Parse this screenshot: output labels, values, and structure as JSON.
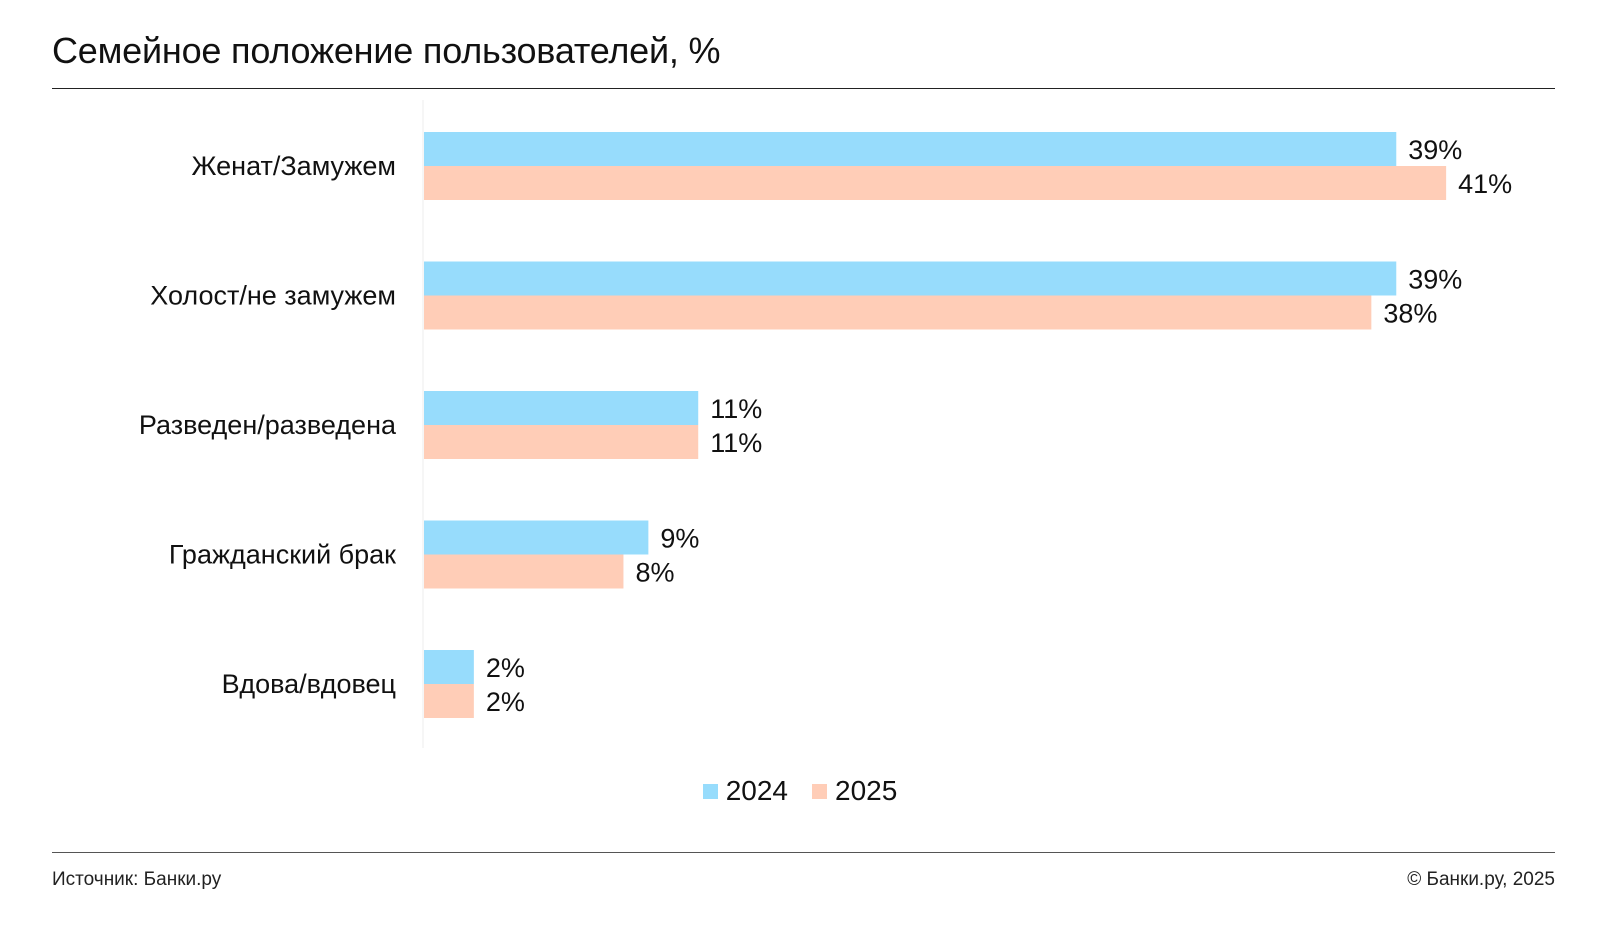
{
  "title": "Семейное положение пользователей, %",
  "legend": [
    {
      "label": "2024",
      "color": "#97dcfc"
    },
    {
      "label": "2025",
      "color": "#ffcdb7"
    }
  ],
  "footer": {
    "source": "Источник: Банки.ру",
    "copyright": "© Банки.ру, 2025"
  },
  "chart_data": {
    "type": "bar",
    "orientation": "horizontal",
    "title": "Семейное положение пользователей, %",
    "categories": [
      "Женат/Замужем",
      "Холост/не замужем",
      "Разведен/разведена",
      "Гражданский брак",
      "Вдова/вдовец"
    ],
    "series": [
      {
        "name": "2024",
        "color": "#97dcfc",
        "values": [
          39,
          39,
          11,
          9,
          2
        ],
        "labels": [
          "39%",
          "39%",
          "11%",
          "9%",
          "2%"
        ]
      },
      {
        "name": "2025",
        "color": "#ffcdb7",
        "values": [
          41,
          38,
          11,
          8,
          2
        ],
        "labels": [
          "41%",
          "38%",
          "11%",
          "8%",
          "2%"
        ]
      }
    ],
    "xlim": [
      0,
      41
    ],
    "grid": false,
    "legend_position": "bottom"
  }
}
